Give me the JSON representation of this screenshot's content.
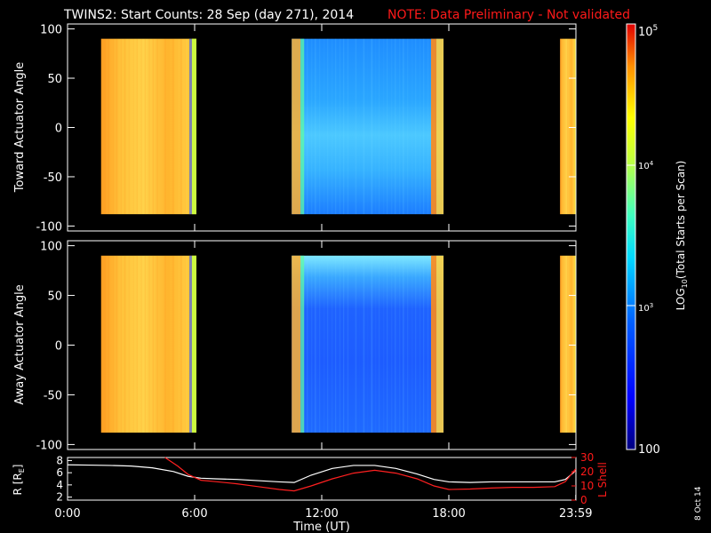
{
  "title": {
    "main": "TWINS2: Start Counts: 28 Sep (day 271), 2014",
    "note": "NOTE: Data Preliminary - Not validated",
    "note_color": "#ff1a1a"
  },
  "footer_date": "8 Oct 14",
  "chart_data": [
    {
      "type": "heatmap",
      "name": "toward",
      "ylabel": "Toward Actuator Angle",
      "xlim": [
        0,
        24
      ],
      "ylim": [
        -105,
        105
      ],
      "yticks": [
        100,
        50,
        0,
        -50,
        -100
      ],
      "angle_range": [
        -88,
        90
      ],
      "segments": [
        {
          "start": "1:35",
          "end": "6:05",
          "color_scale_level": 0.88
        },
        {
          "start": "10:35",
          "end": "17:45",
          "color_scale_level": 0.35
        },
        {
          "start": "23:15",
          "end": "23:59",
          "color_scale_level": 0.88
        }
      ]
    },
    {
      "type": "heatmap",
      "name": "away",
      "ylabel": "Away Actuator Angle",
      "xlim": [
        0,
        24
      ],
      "ylim": [
        -105,
        105
      ],
      "yticks": [
        100,
        50,
        0,
        -50,
        -100
      ],
      "angle_range": [
        -88,
        90
      ],
      "segments": [
        {
          "start": "1:35",
          "end": "6:05",
          "color_scale_level": 0.88
        },
        {
          "start": "10:35",
          "end": "17:45",
          "color_scale_level": 0.2
        },
        {
          "start": "23:15",
          "end": "23:59",
          "color_scale_level": 0.88
        }
      ]
    },
    {
      "type": "line",
      "name": "orbit",
      "ylabel_left": "R [R",
      "ylabel_left_sub": "E",
      "ylabel_left_tail": "]",
      "ylabel_right": "L Shell",
      "yticks_left": [
        8,
        6,
        4,
        2
      ],
      "ylim_left": [
        1.5,
        8.5
      ],
      "yticks_right": [
        30,
        20,
        10,
        0
      ],
      "ylim_right": [
        0,
        30
      ],
      "xticks": [
        "0:00",
        "6:00",
        "12:00",
        "18:00",
        "23:59"
      ],
      "xlabel": "Time (UT)",
      "series": [
        {
          "axis": "left",
          "color": "#ffffff",
          "x": [
            0,
            1,
            2,
            3,
            4,
            5,
            5.7,
            6.3,
            7,
            8,
            9,
            10,
            10.7,
            11.5,
            12.5,
            13.5,
            14.5,
            15.5,
            16.5,
            17.3,
            18,
            19,
            20,
            21,
            22,
            23,
            23.5,
            23.99
          ],
          "y": [
            7.3,
            7.25,
            7.2,
            7.1,
            6.8,
            6.2,
            5.4,
            5.1,
            5.0,
            4.9,
            4.7,
            4.5,
            4.4,
            5.6,
            6.7,
            7.2,
            7.2,
            6.7,
            5.8,
            4.9,
            4.5,
            4.4,
            4.5,
            4.5,
            4.5,
            4.5,
            4.9,
            6.3
          ]
        },
        {
          "axis": "right",
          "color": "#ff2020",
          "x": [
            4.6,
            5.2,
            5.7,
            6.3,
            7,
            8,
            9,
            10,
            10.7,
            11.5,
            12.5,
            13.5,
            14.5,
            15.5,
            16.5,
            17.3,
            18,
            19,
            20,
            21,
            22,
            23,
            23.5,
            23.99
          ],
          "y": [
            30,
            24,
            18,
            14,
            13,
            11.5,
            9.5,
            7.5,
            6.5,
            10,
            15,
            19,
            21,
            19,
            15,
            10,
            7.5,
            7.8,
            8.5,
            9,
            9,
            9.5,
            13,
            22
          ]
        }
      ]
    }
  ],
  "colorbar": {
    "label_pre": "LOG",
    "label_sub": "10",
    "label_post": "(Total Starts per Scan)",
    "top_label_base": "10",
    "top_label_exp": "5",
    "mid_label_base": "10",
    "mid_label_exp": "4",
    "low_label_base": "10",
    "low_label_exp": "3",
    "bottom_label": "100"
  },
  "colors": {
    "white": "#ffffff",
    "red": "#ff1a1a"
  }
}
